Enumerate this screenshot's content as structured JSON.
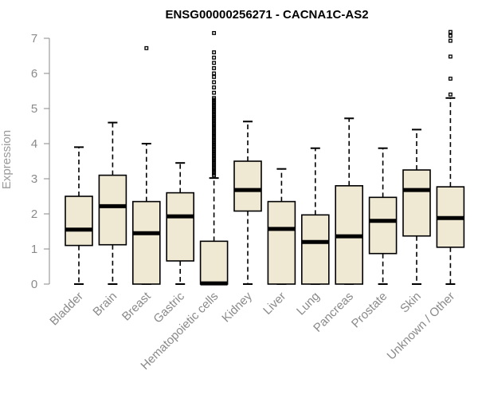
{
  "chart_data": {
    "type": "boxplot",
    "title": "ENSG00000256271 - CACNA1C-AS2",
    "xlabel": "",
    "ylabel": "Expression",
    "ylim": [
      0,
      7
    ],
    "yticks": [
      0,
      1,
      2,
      3,
      4,
      5,
      6,
      7
    ],
    "box_color": "#efe8d2",
    "categories": [
      "Bladder",
      "Brain",
      "Breast",
      "Gastric",
      "Hematopoietic cells",
      "Kidney",
      "Liver",
      "Lung",
      "Pancreas",
      "Prostate",
      "Skin",
      "Unknown / Other"
    ],
    "series": [
      {
        "name": "Bladder",
        "min": 0,
        "q1": 1.1,
        "median": 1.55,
        "q3": 2.5,
        "max": 3.9,
        "outliers": []
      },
      {
        "name": "Brain",
        "min": 0,
        "q1": 1.12,
        "median": 2.22,
        "q3": 3.1,
        "max": 4.6,
        "outliers": []
      },
      {
        "name": "Breast",
        "min": 0,
        "q1": 0,
        "median": 1.45,
        "q3": 2.35,
        "max": 4.0,
        "outliers": [
          6.72
        ]
      },
      {
        "name": "Gastric",
        "min": 0,
        "q1": 0.66,
        "median": 1.93,
        "q3": 2.6,
        "max": 3.45,
        "outliers": []
      },
      {
        "name": "Hematopoietic cells",
        "min": 0,
        "q1": 0,
        "median": 0.02,
        "q3": 1.22,
        "max": 3.02,
        "outliers": [
          3.1,
          3.15,
          3.2,
          3.25,
          3.3,
          3.35,
          3.4,
          3.45,
          3.5,
          3.55,
          3.6,
          3.65,
          3.7,
          3.75,
          3.8,
          3.85,
          3.9,
          3.95,
          4.0,
          4.05,
          4.1,
          4.15,
          4.2,
          4.25,
          4.3,
          4.35,
          4.4,
          4.45,
          4.5,
          4.55,
          4.6,
          4.65,
          4.7,
          4.75,
          4.8,
          4.85,
          4.9,
          4.95,
          5.0,
          5.05,
          5.1,
          5.15,
          5.2,
          5.25,
          5.3,
          5.45,
          5.6,
          5.75,
          5.9,
          6.0,
          6.15,
          6.3,
          6.45,
          6.6,
          7.15
        ]
      },
      {
        "name": "Kidney",
        "min": 0,
        "q1": 2.08,
        "median": 2.68,
        "q3": 3.5,
        "max": 4.63,
        "outliers": []
      },
      {
        "name": "Liver",
        "min": 0,
        "q1": 0,
        "median": 1.57,
        "q3": 2.35,
        "max": 3.28,
        "outliers": []
      },
      {
        "name": "Lung",
        "min": 0,
        "q1": 0,
        "median": 1.2,
        "q3": 1.97,
        "max": 3.87,
        "outliers": []
      },
      {
        "name": "Pancreas",
        "min": 0,
        "q1": 0,
        "median": 1.36,
        "q3": 2.8,
        "max": 4.72,
        "outliers": []
      },
      {
        "name": "Prostate",
        "min": 0,
        "q1": 0.87,
        "median": 1.8,
        "q3": 2.47,
        "max": 3.87,
        "outliers": []
      },
      {
        "name": "Skin",
        "min": 0,
        "q1": 1.37,
        "median": 2.68,
        "q3": 3.25,
        "max": 4.4,
        "outliers": []
      },
      {
        "name": "Unknown / Other",
        "min": 0,
        "q1": 1.05,
        "median": 1.88,
        "q3": 2.77,
        "max": 5.3,
        "outliers": [
          5.4,
          5.85,
          6.48,
          6.93,
          7.07,
          7.18
        ]
      }
    ]
  }
}
